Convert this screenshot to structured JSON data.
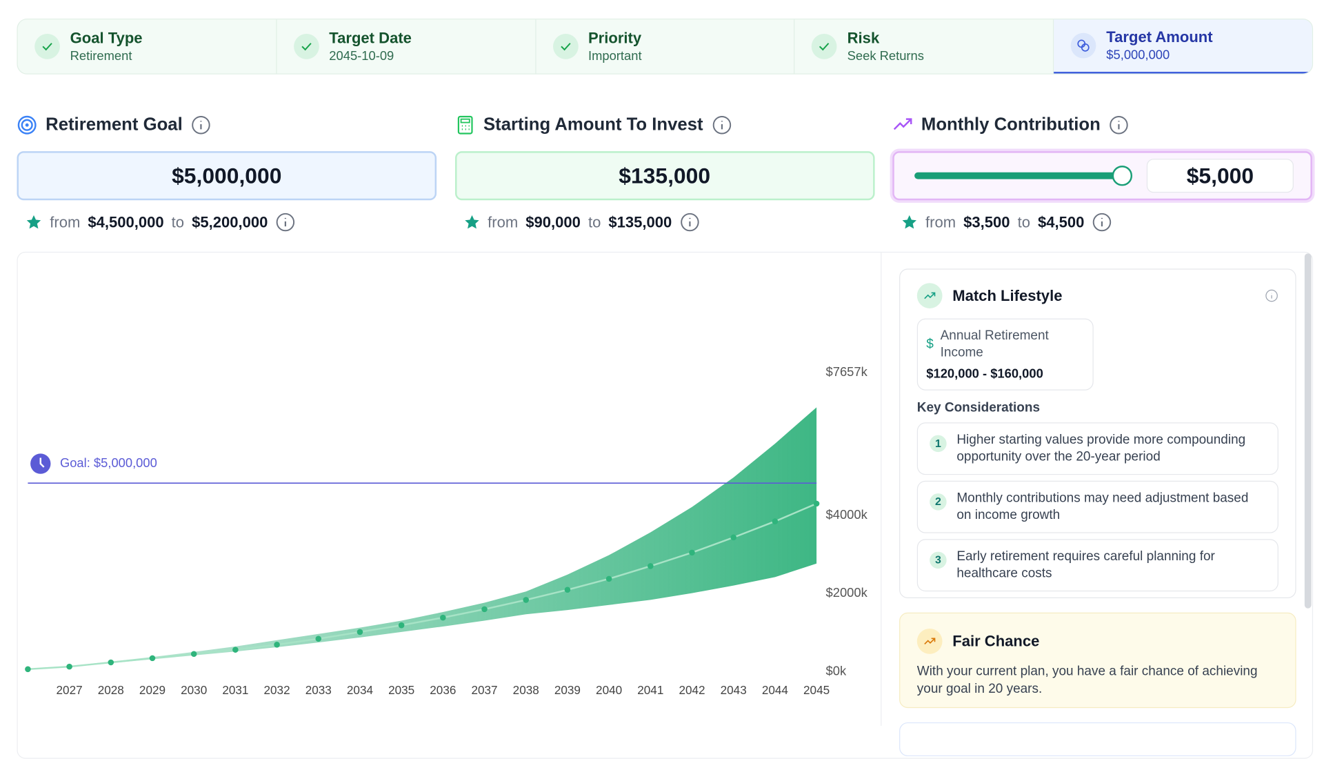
{
  "steps": [
    {
      "title": "Goal Type",
      "value": "Retirement"
    },
    {
      "title": "Target Date",
      "value": "2045-10-09"
    },
    {
      "title": "Priority",
      "value": "Important"
    },
    {
      "title": "Risk",
      "value": "Seek Returns"
    },
    {
      "title": "Target Amount",
      "value": "$5,000,000"
    }
  ],
  "inputs": [
    {
      "title": "Retirement Goal",
      "value": "$5,000,000",
      "from": "from",
      "low": "$4,500,000",
      "to": "to",
      "high": "$5,200,000"
    },
    {
      "title": "Starting Amount To Invest",
      "value": "$135,000",
      "from": "from",
      "low": "$90,000",
      "to": "to",
      "high": "$135,000"
    },
    {
      "title": "Monthly Contribution",
      "value": "$5,000",
      "from": "from",
      "low": "$3,500",
      "to": "to",
      "high": "$4,500"
    }
  ],
  "chart_data": {
    "type": "band-line",
    "categories": [
      null,
      "2027",
      "2028",
      "2029",
      "2030",
      "2031",
      "2032",
      "2033",
      "2034",
      "2035",
      "2036",
      "2037",
      "2038",
      "2039",
      "2040",
      "2041",
      "2042",
      "2043",
      "2044",
      "2045"
    ],
    "band": {
      "color": "#34b37e",
      "upper": [
        238,
        320,
        430,
        550,
        680,
        820,
        980,
        1140,
        1300,
        1480,
        1700,
        1940,
        2227,
        2659,
        3157,
        3741,
        4389,
        5146,
        6011,
        6941
      ],
      "lower": [
        238,
        290,
        390,
        490,
        590,
        690,
        800,
        920,
        1050,
        1190,
        1330,
        1480,
        1643,
        1751,
        1881,
        2011,
        2184,
        2378,
        2595,
        2941
      ]
    },
    "series": [
      {
        "color": "#2fb47c",
        "values": [
          238,
          303,
          411,
          519,
          627,
          735,
          865,
          1016,
          1189,
          1362,
          1557,
          1773,
          2011,
          2270,
          2551,
          2876,
          3222,
          3611,
          4022,
          4476
        ]
      }
    ],
    "goal": {
      "value": 5000,
      "label": "Goal: $5,000,000",
      "color": "#5b5bd6"
    },
    "ylim": [
      0,
      7657
    ],
    "yticks": [
      {
        "value": 0,
        "label": "$0k"
      },
      {
        "value": 2000,
        "label": "$2000k"
      },
      {
        "value": 4000,
        "label": "$4000k"
      },
      {
        "value": 7657,
        "label": "$7657k"
      }
    ]
  },
  "sidebar": {
    "lifestyle": {
      "title": "Match Lifestyle",
      "income_label": "Annual Retirement Income",
      "income_value": "$120,000 - $160,000",
      "considerations_title": "Key Considerations",
      "considerations": [
        {
          "num": "1",
          "text": "Higher starting values provide more compounding opportunity over the 20-year period"
        },
        {
          "num": "2",
          "text": "Monthly contributions may need adjustment based on income growth"
        },
        {
          "num": "3",
          "text": "Early retirement requires careful planning for healthcare costs"
        }
      ]
    },
    "chance": {
      "title": "Fair Chance",
      "text": "With your current plan, you have a fair chance of achieving your goal in 20 years."
    }
  }
}
